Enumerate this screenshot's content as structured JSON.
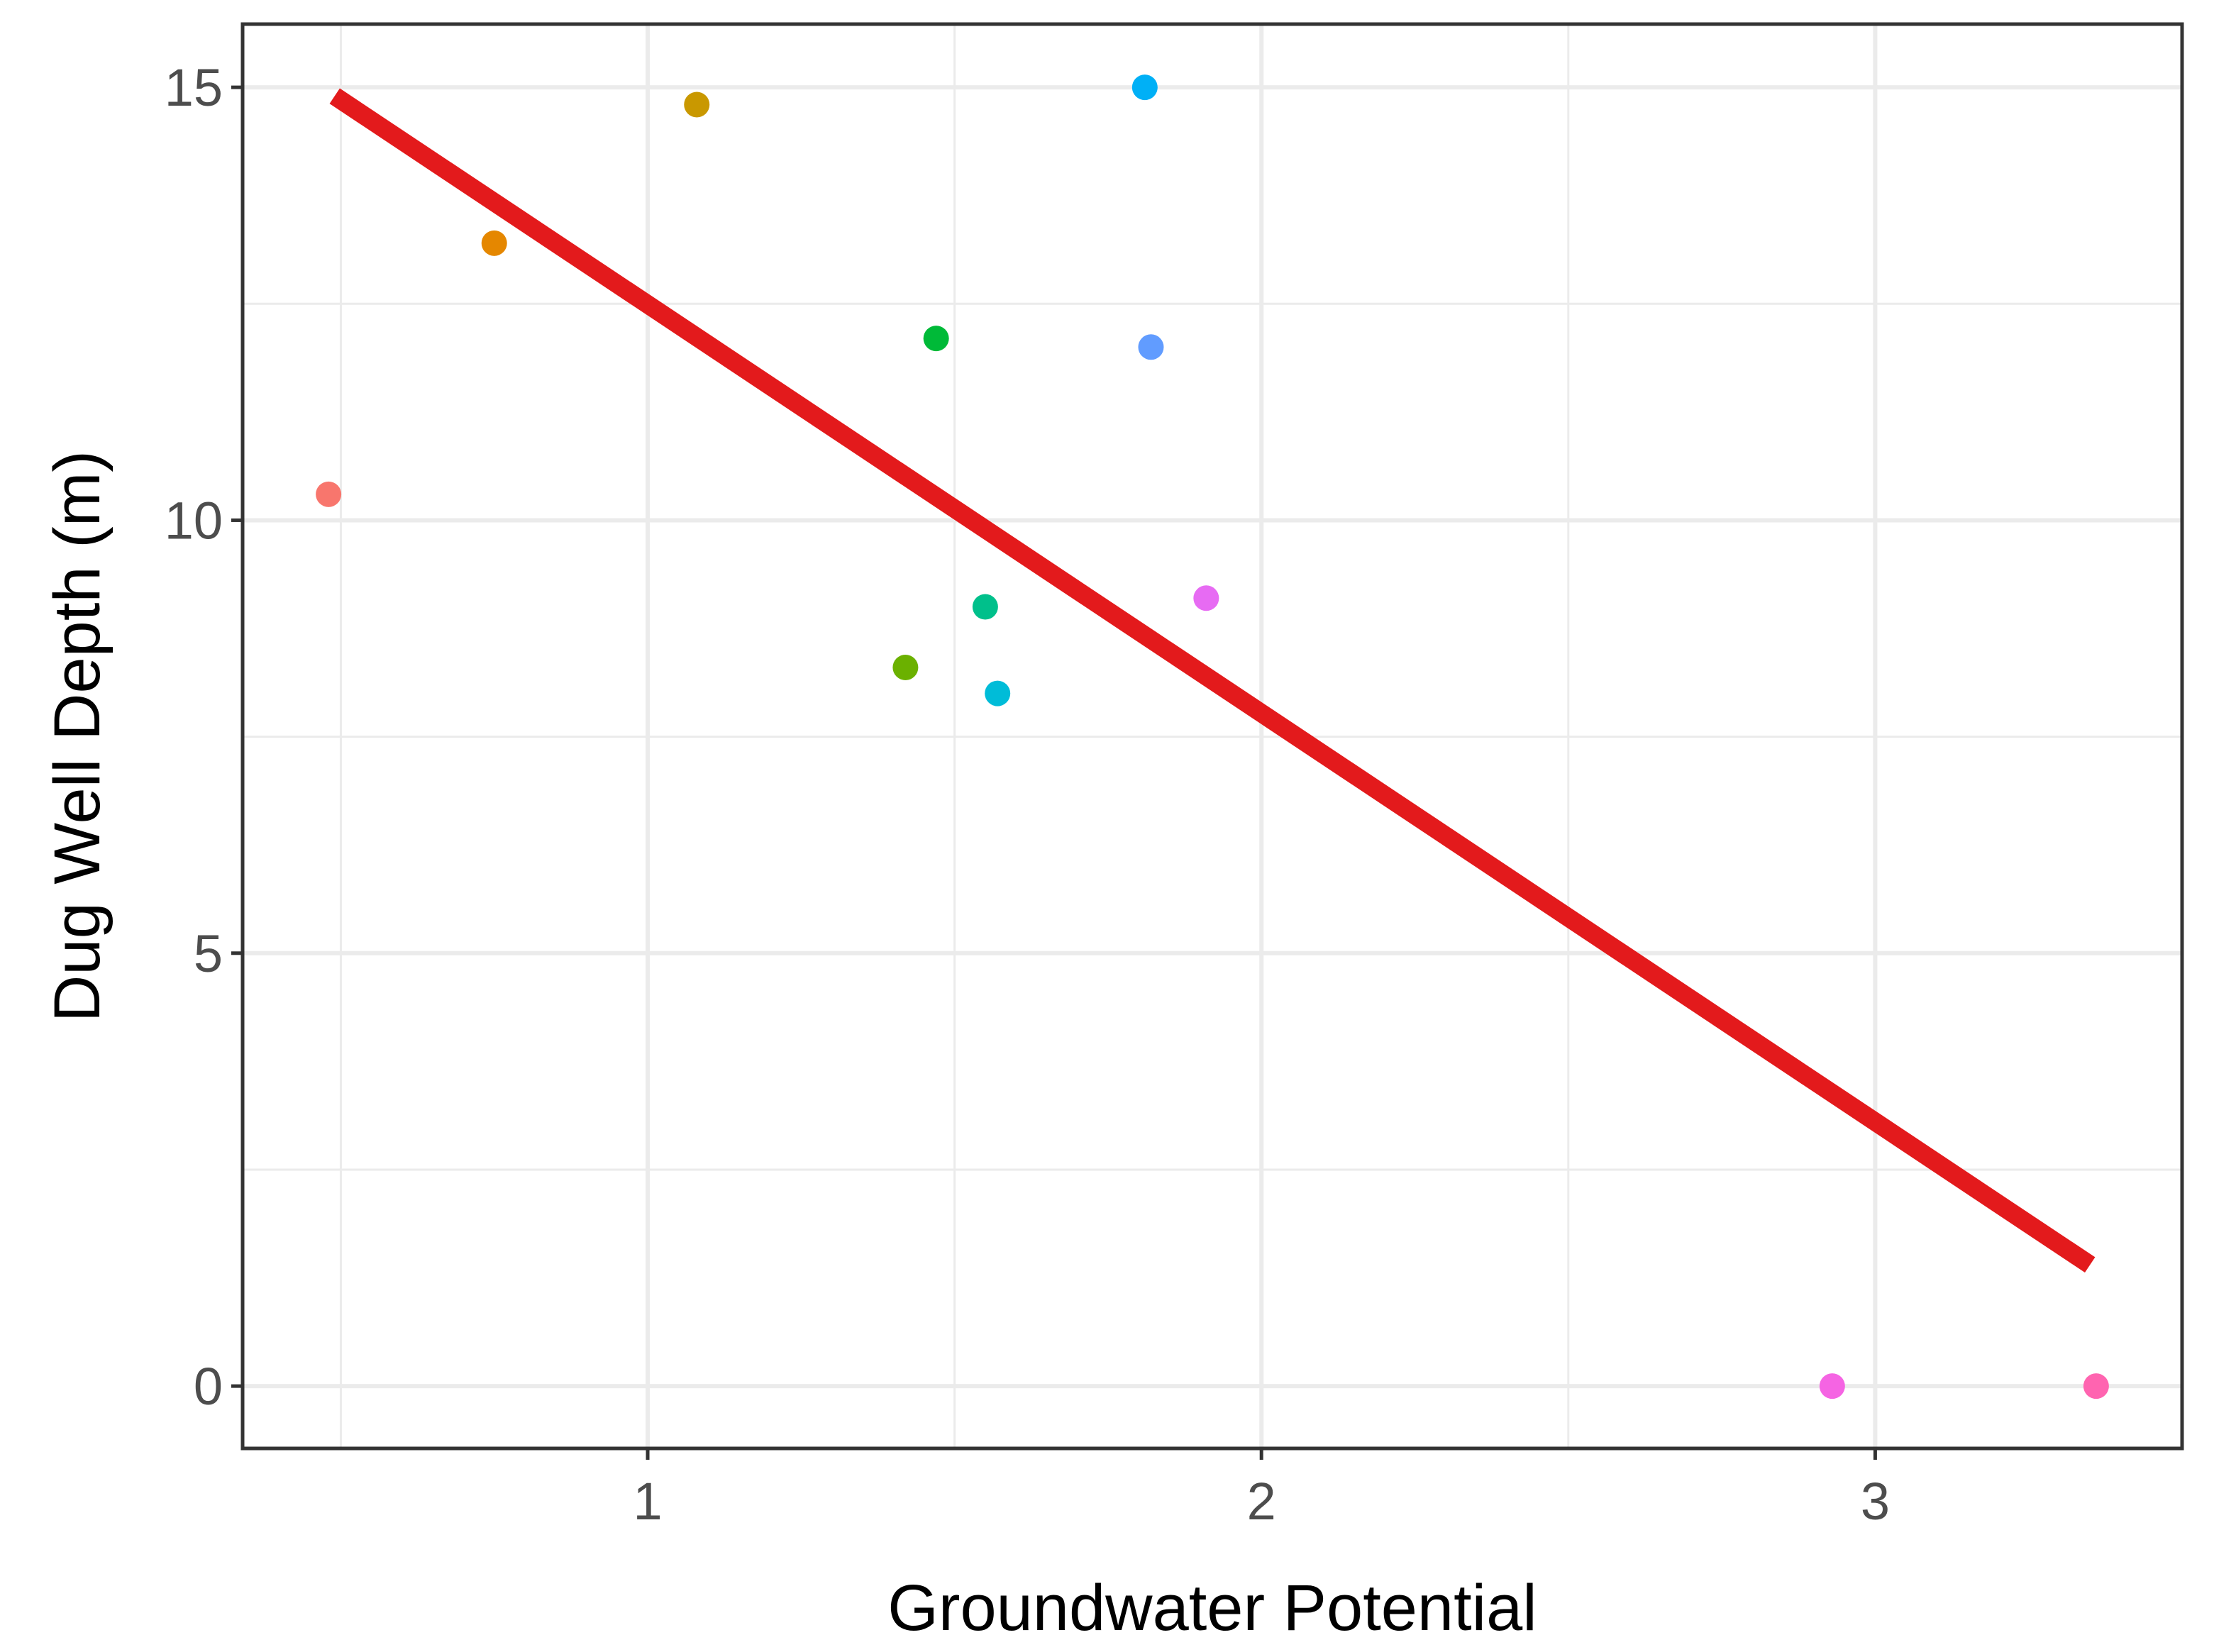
{
  "chart_data": {
    "type": "scatter",
    "title": "",
    "xlabel": "Groundwater Potential",
    "ylabel": "Dug Well Depth (m)",
    "xlim": [
      0.34,
      3.5
    ],
    "ylim": [
      -0.72,
      15.73
    ],
    "x_ticks": [
      1,
      2,
      3
    ],
    "x_tick_labels": [
      "1",
      "2",
      "3"
    ],
    "y_ticks": [
      0,
      5,
      10,
      15
    ],
    "y_tick_labels": [
      "0",
      "5",
      "10",
      "15"
    ],
    "x_minor_ticks": [
      0.5,
      1.5,
      2.5
    ],
    "y_minor_ticks": [
      2.5,
      7.5,
      12.5
    ],
    "grid": true,
    "legend": "none",
    "points": [
      {
        "x": 0.48,
        "y": 10.3,
        "color": "#F8766D"
      },
      {
        "x": 0.75,
        "y": 13.2,
        "color": "#E58700"
      },
      {
        "x": 1.08,
        "y": 14.8,
        "color": "#C99800"
      },
      {
        "x": 1.42,
        "y": 8.3,
        "color": "#6BB100"
      },
      {
        "x": 1.47,
        "y": 12.1,
        "color": "#00BA38"
      },
      {
        "x": 1.55,
        "y": 9.0,
        "color": "#00C08B"
      },
      {
        "x": 1.57,
        "y": 8.0,
        "color": "#00BCD8"
      },
      {
        "x": 1.81,
        "y": 15.0,
        "color": "#00B0F6"
      },
      {
        "x": 1.82,
        "y": 12.0,
        "color": "#619CFF"
      },
      {
        "x": 1.91,
        "y": 9.1,
        "color": "#E76BF3"
      },
      {
        "x": 2.93,
        "y": 0.0,
        "color": "#F564E3"
      },
      {
        "x": 3.36,
        "y": 0.0,
        "color": "#FF64B0"
      }
    ],
    "fit_line": {
      "x": [
        0.49,
        3.35
      ],
      "y": [
        14.9,
        1.4
      ],
      "color": "#E31A1C"
    }
  }
}
